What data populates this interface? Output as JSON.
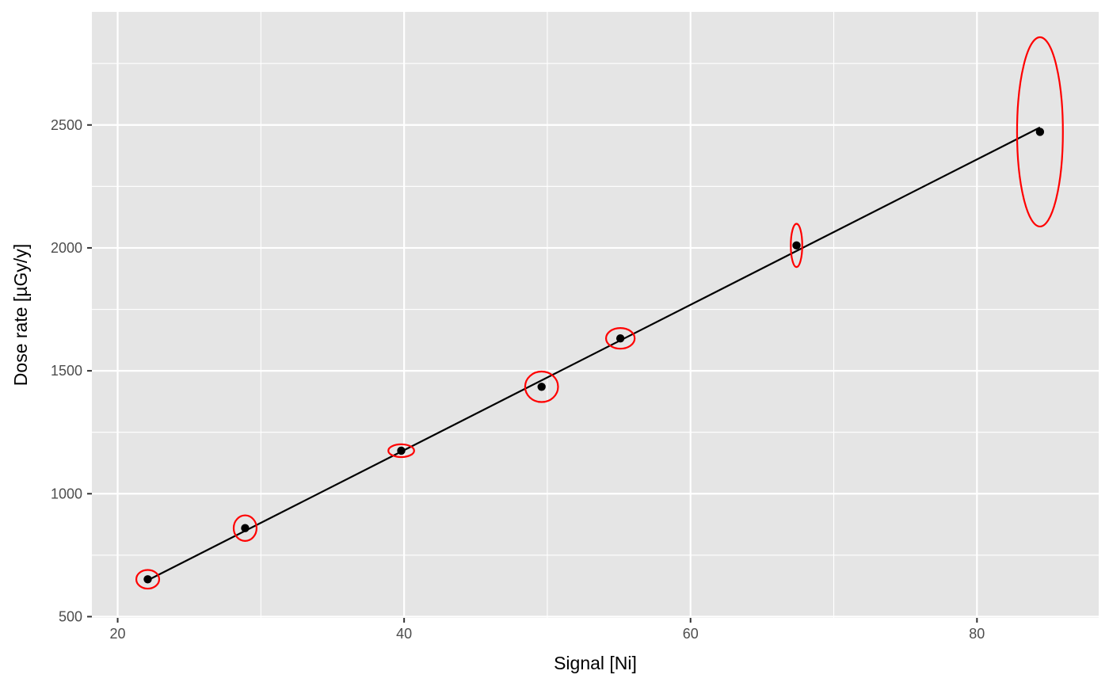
{
  "chart_data": {
    "type": "scatter",
    "title": "",
    "xlabel": "Signal [Ni]",
    "ylabel": "Dose rate [µGy/y]",
    "xlim": [
      18.2,
      88.5
    ],
    "ylim": [
      495,
      2960
    ],
    "x_ticks": [
      20,
      40,
      60,
      80
    ],
    "x_tick_labels": [
      "20",
      "40",
      "60",
      "80"
    ],
    "x_minor_ticks": [
      30,
      50,
      70
    ],
    "y_ticks": [
      500,
      1000,
      1500,
      2000,
      2500
    ],
    "y_tick_labels": [
      "500",
      "1000",
      "1500",
      "2000",
      "2500"
    ],
    "y_minor_ticks": [
      750,
      1250,
      1750,
      2250,
      2750
    ],
    "grid": true,
    "panel_background": "#e5e5e5",
    "grid_color": "#ffffff",
    "point_color": "#000000",
    "ellipse_color": "#ff0000",
    "line_color": "#000000",
    "points": [
      {
        "x": 22.1,
        "y": 652,
        "x_err": 0.8,
        "y_err": 38
      },
      {
        "x": 28.9,
        "y": 860,
        "x_err": 0.8,
        "y_err": 52
      },
      {
        "x": 39.8,
        "y": 1175,
        "x_err": 0.9,
        "y_err": 26
      },
      {
        "x": 49.6,
        "y": 1435,
        "x_err": 1.15,
        "y_err": 62
      },
      {
        "x": 55.1,
        "y": 1632,
        "x_err": 1.0,
        "y_err": 42
      },
      {
        "x": 67.4,
        "y": 2010,
        "x_err": 0.4,
        "y_err": 88
      },
      {
        "x": 84.4,
        "y": 2472,
        "x_err": 1.6,
        "y_err": 385
      }
    ],
    "fit_line": {
      "x": [
        22.1,
        84.4
      ],
      "y": [
        648,
        2490
      ]
    }
  }
}
